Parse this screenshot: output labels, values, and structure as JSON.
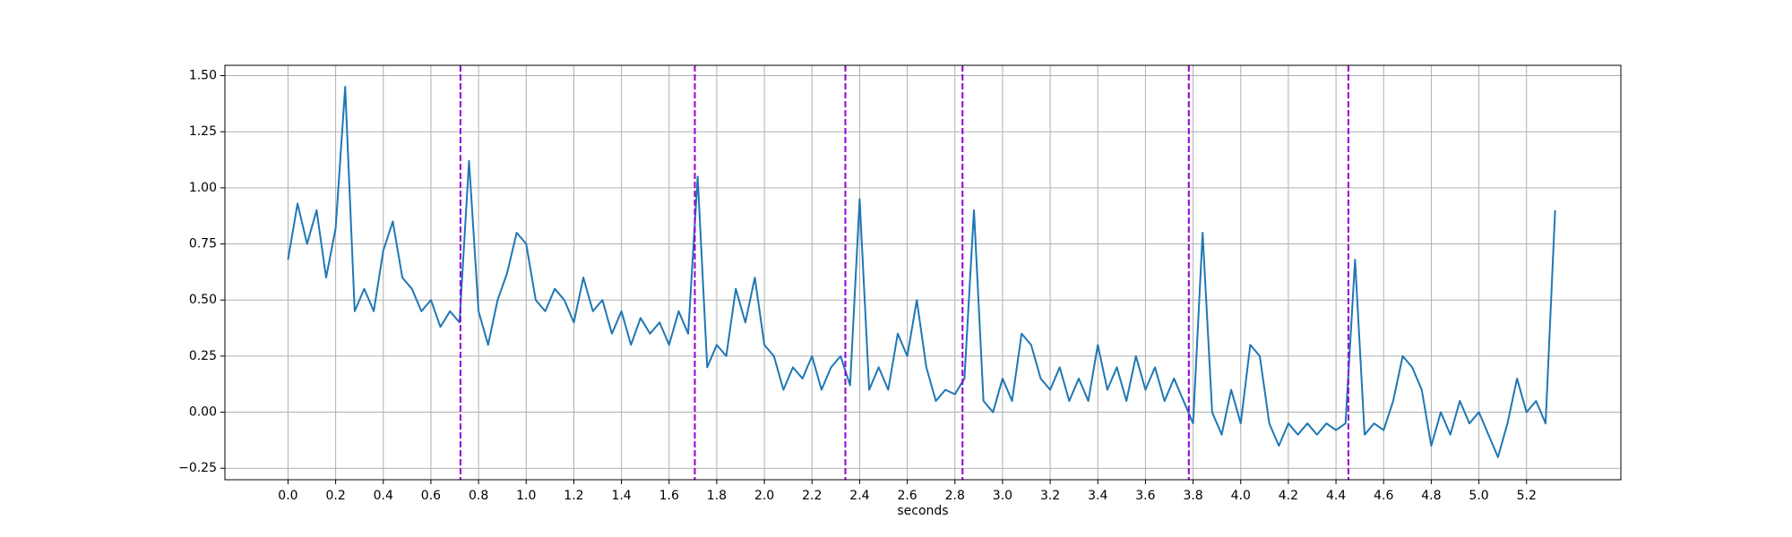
{
  "chart_data": {
    "type": "line",
    "xlabel": "seconds",
    "grid": true,
    "xlim": [
      -0.265,
      5.596
    ],
    "ylim": [
      -0.301,
      1.546
    ],
    "xticks": [
      {
        "value": 0,
        "label": "0.0"
      },
      0.2,
      0.4,
      0.6,
      0.8,
      {
        "value": 1,
        "label": "1.0"
      },
      1.2,
      1.4,
      1.6,
      1.8,
      {
        "value": 2,
        "label": "2.0"
      },
      2.2,
      2.4,
      2.6,
      2.8,
      {
        "value": 3,
        "label": "3.0"
      },
      3.2,
      3.4,
      3.6,
      3.8,
      {
        "value": 4,
        "label": "4.0"
      },
      4.2,
      4.4,
      4.6,
      4.8,
      {
        "value": 5,
        "label": "5.0"
      },
      5.2
    ],
    "yticks": [
      {
        "value": -0.25,
        "label": "−0.25"
      },
      {
        "value": 0,
        "label": "0.00"
      },
      0.25,
      {
        "value": 0.5,
        "label": "0.50"
      },
      0.75,
      {
        "value": 1,
        "label": "1.00"
      },
      1.25,
      {
        "value": 1.5,
        "label": "1.50"
      }
    ],
    "vlines": [
      0.724,
      1.708,
      2.34,
      2.832,
      3.782,
      4.452
    ],
    "vline_color": "#9400d3",
    "x": [
      0,
      0.04,
      0.08,
      0.12,
      0.16,
      0.2,
      0.24,
      0.28,
      0.32,
      0.36,
      0.4,
      0.44,
      0.48,
      0.52,
      0.56,
      0.6,
      0.64,
      0.68,
      0.72,
      0.76,
      0.8,
      0.84,
      0.88,
      0.92,
      0.96,
      1,
      1.04,
      1.08,
      1.12,
      1.16,
      1.2,
      1.24,
      1.28,
      1.32,
      1.36,
      1.4,
      1.44,
      1.48,
      1.52,
      1.56,
      1.6,
      1.64,
      1.68,
      1.72,
      1.76,
      1.8,
      1.84,
      1.88,
      1.92,
      1.96,
      2,
      2.04,
      2.08,
      2.12,
      2.16,
      2.2,
      2.24,
      2.28,
      2.32,
      2.36,
      2.4,
      2.44,
      2.48,
      2.52,
      2.56,
      2.6,
      2.64,
      2.68,
      2.72,
      2.76,
      2.8,
      2.84,
      2.88,
      2.92,
      2.96,
      3,
      3.04,
      3.08,
      3.12,
      3.16,
      3.2,
      3.24,
      3.28,
      3.32,
      3.36,
      3.4,
      3.44,
      3.48,
      3.52,
      3.56,
      3.6,
      3.64,
      3.68,
      3.72,
      3.76,
      3.8,
      3.84,
      3.88,
      3.92,
      3.96,
      4,
      4.04,
      4.08,
      4.12,
      4.16,
      4.2,
      4.24,
      4.28,
      4.32,
      4.36,
      4.4,
      4.44,
      4.48,
      4.52,
      4.56,
      4.6,
      4.64,
      4.68,
      4.72,
      4.76,
      4.8,
      4.84,
      4.88,
      4.92,
      4.96,
      5,
      5.04,
      5.08,
      5.12,
      5.16,
      5.2,
      5.24,
      5.28,
      5.32
    ],
    "series": [
      {
        "color": "#1f77b4",
        "values": [
          0.68,
          0.93,
          0.75,
          0.9,
          0.6,
          0.82,
          1.45,
          0.45,
          0.55,
          0.45,
          0.72,
          0.85,
          0.6,
          0.55,
          0.45,
          0.5,
          0.38,
          0.45,
          0.4,
          1.12,
          0.45,
          0.3,
          0.5,
          0.62,
          0.8,
          0.75,
          0.5,
          0.45,
          0.55,
          0.5,
          0.4,
          0.6,
          0.45,
          0.5,
          0.35,
          0.45,
          0.3,
          0.42,
          0.35,
          0.4,
          0.3,
          0.45,
          0.35,
          1.05,
          0.2,
          0.3,
          0.25,
          0.55,
          0.4,
          0.6,
          0.3,
          0.25,
          0.1,
          0.2,
          0.15,
          0.25,
          0.1,
          0.2,
          0.25,
          0.12,
          0.95,
          0.1,
          0.2,
          0.1,
          0.35,
          0.25,
          0.5,
          0.2,
          0.05,
          0.1,
          0.08,
          0.15,
          0.9,
          0.05,
          0.0,
          0.15,
          0.05,
          0.35,
          0.3,
          0.15,
          0.1,
          0.2,
          0.05,
          0.15,
          0.05,
          0.3,
          0.1,
          0.2,
          0.05,
          0.25,
          0.1,
          0.2,
          0.05,
          0.15,
          0.05,
          -0.05,
          0.8,
          0.0,
          -0.1,
          0.1,
          -0.05,
          0.3,
          0.25,
          -0.05,
          -0.15,
          -0.05,
          -0.1,
          -0.05,
          -0.1,
          -0.05,
          -0.08,
          -0.05,
          0.68,
          -0.1,
          -0.05,
          -0.08,
          0.05,
          0.25,
          0.2,
          0.1,
          -0.15,
          0.0,
          -0.1,
          0.05,
          -0.05,
          0.0,
          -0.1,
          -0.2,
          -0.05,
          0.15,
          0.0,
          0.05,
          -0.05,
          0.9
        ]
      }
    ]
  }
}
